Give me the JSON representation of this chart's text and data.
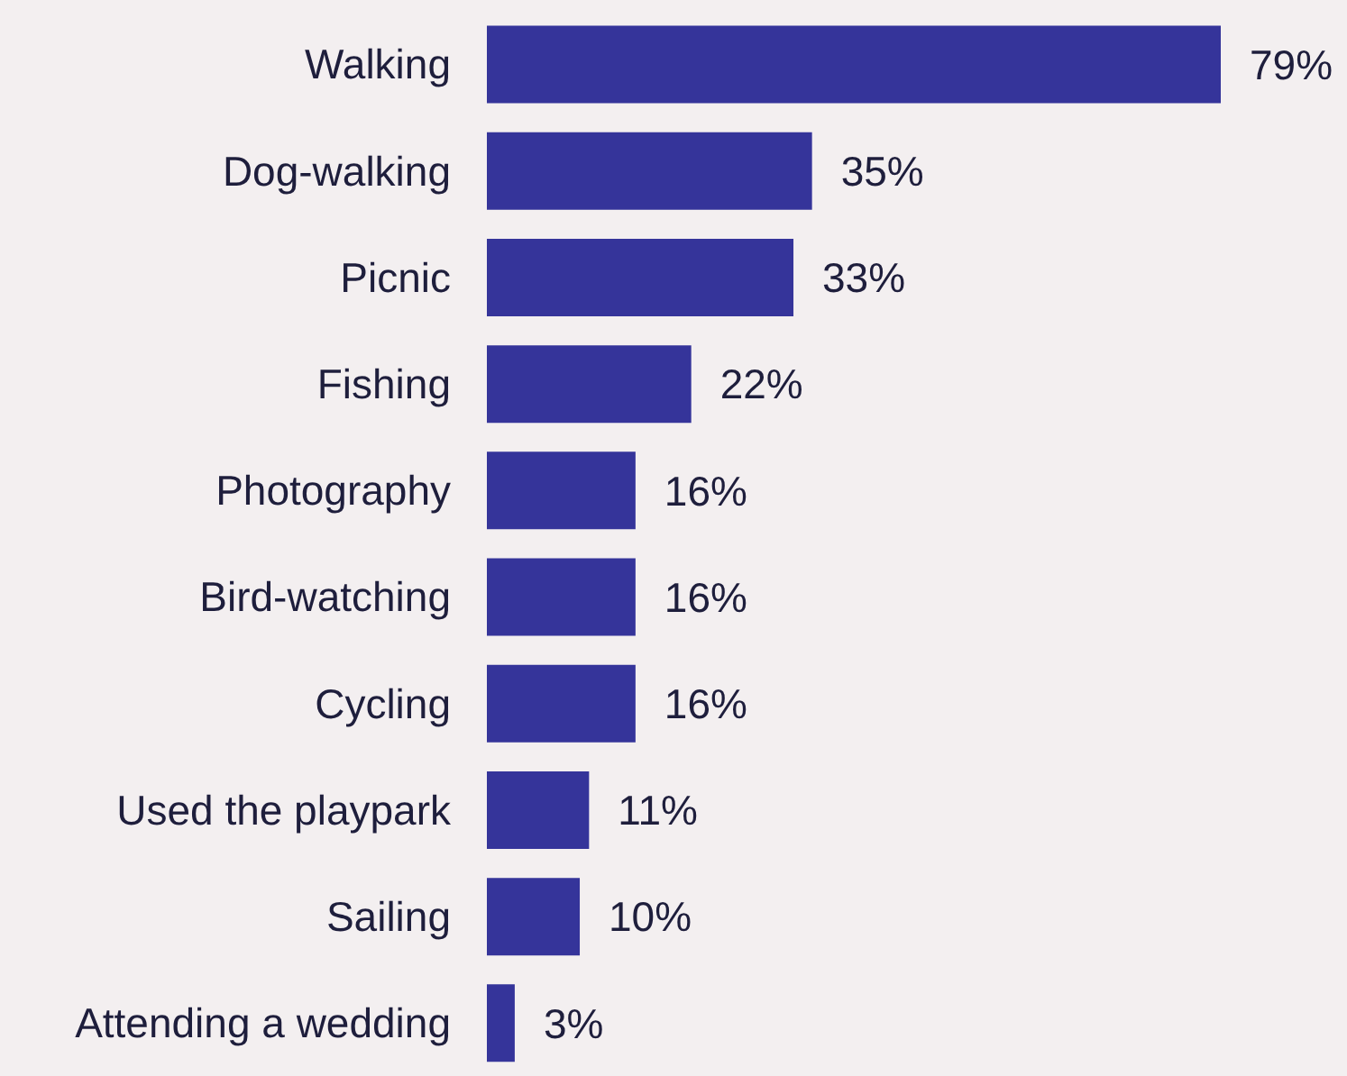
{
  "chart_data": {
    "type": "bar",
    "orientation": "horizontal",
    "categories": [
      "Walking",
      "Dog-walking",
      "Picnic",
      "Fishing",
      "Photography",
      "Bird-watching",
      "Cycling",
      "Used the playpark",
      "Sailing",
      "Attending a wedding"
    ],
    "values": [
      79,
      35,
      33,
      22,
      16,
      16,
      16,
      11,
      10,
      3
    ],
    "value_labels": [
      "79%",
      "35%",
      "33%",
      "22%",
      "16%",
      "16%",
      "16%",
      "11%",
      "10%",
      "3%"
    ],
    "color": "#35349a"
  }
}
